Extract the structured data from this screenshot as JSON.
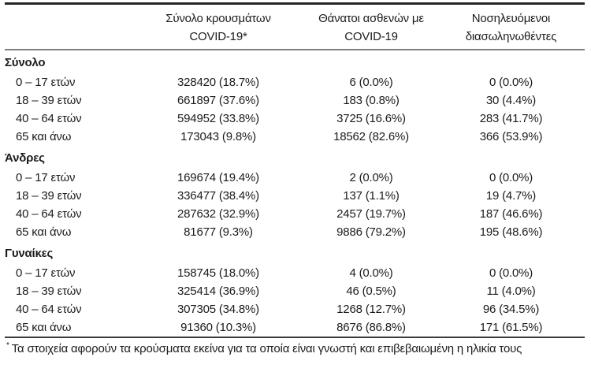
{
  "table": {
    "columns": [
      {
        "line1": "",
        "line2": ""
      },
      {
        "line1": "Σύνολο κρουσμάτων",
        "line2": "COVID-19*"
      },
      {
        "line1": "Θάνατοι ασθενών με",
        "line2": "COVID-19"
      },
      {
        "line1": "Νοσηλευόμενοι",
        "line2": "διασωληνωθέντες"
      }
    ],
    "sections": [
      {
        "label": "Σύνολο",
        "rows": [
          {
            "age": "0 – 17 ετών",
            "cases": "328420 (18.7%)",
            "deaths": "6 (0.0%)",
            "intubated": "0 (0.0%)"
          },
          {
            "age": "18 – 39 ετών",
            "cases": "661897 (37.6%)",
            "deaths": "183 (0.8%)",
            "intubated": "30 (4.4%)"
          },
          {
            "age": "40 – 64 ετών",
            "cases": "594952 (33.8%)",
            "deaths": "3725 (16.6%)",
            "intubated": "283 (41.7%)"
          },
          {
            "age": "65 και άνω",
            "cases": "173043 (9.8%)",
            "deaths": "18562 (82.6%)",
            "intubated": "366 (53.9%)"
          }
        ]
      },
      {
        "label": "Άνδρες",
        "rows": [
          {
            "age": "0 – 17 ετών",
            "cases": "169674 (19.4%)",
            "deaths": "2 (0.0%)",
            "intubated": "0 (0.0%)"
          },
          {
            "age": "18 – 39 ετών",
            "cases": "336477 (38.4%)",
            "deaths": "137 (1.1%)",
            "intubated": "19 (4.7%)"
          },
          {
            "age": "40 – 64 ετών",
            "cases": "287632 (32.9%)",
            "deaths": "2457 (19.7%)",
            "intubated": "187 (46.6%)"
          },
          {
            "age": "65 και άνω",
            "cases": "81677 (9.3%)",
            "deaths": "9886 (79.2%)",
            "intubated": "195 (48.6%)"
          }
        ]
      },
      {
        "label": "Γυναίκες",
        "rows": [
          {
            "age": "0 – 17 ετών",
            "cases": "158745 (18.0%)",
            "deaths": "4 (0.0%)",
            "intubated": "0 (0.0%)"
          },
          {
            "age": "18 – 39 ετών",
            "cases": "325414 (36.9%)",
            "deaths": "46 (0.5%)",
            "intubated": "11 (4.0%)"
          },
          {
            "age": "40 – 64 ετών",
            "cases": "307305 (34.8%)",
            "deaths": "1268 (12.7%)",
            "intubated": "96 (34.5%)"
          },
          {
            "age": "65 και άνω",
            "cases": "91360 (10.3%)",
            "deaths": "8676 (86.8%)",
            "intubated": "171 (61.5%)"
          }
        ]
      }
    ]
  },
  "footnote": {
    "marker": "*",
    "text": "Τα στοιχεία αφορούν τα κρούσματα εκείνα για τα οποία είναι γνωστή και επιβεβαιωμένη η ηλικία τους"
  }
}
